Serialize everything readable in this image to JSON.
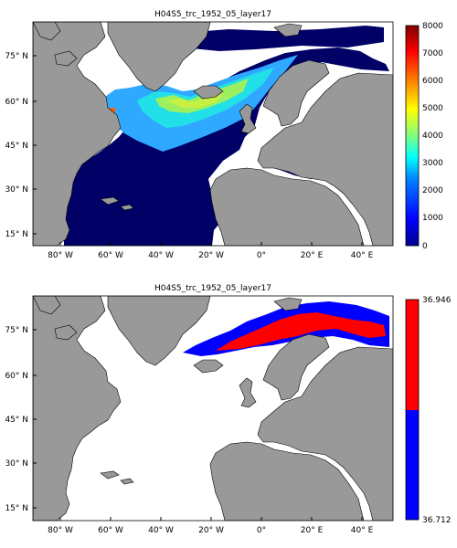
{
  "figure": {
    "panels": [
      {
        "title": "H04S5_trc_1952_05_layer17",
        "y_ticks": [
          "75° N",
          "60° N",
          "45° N",
          "30° N",
          "15° N"
        ],
        "x_ticks": [
          "80° W",
          "60° W",
          "40° W",
          "20° W",
          "0°",
          "20° E",
          "40° E"
        ],
        "colorbar_ticks": [
          "8000",
          "7000",
          "6000",
          "5000",
          "4000",
          "3000",
          "2000",
          "1000",
          "0"
        ],
        "colormap": [
          "#00008f",
          "#0000ff",
          "#0080ff",
          "#00ffff",
          "#80ff80",
          "#ffff00",
          "#ff8000",
          "#ff0000",
          "#800000"
        ]
      },
      {
        "title": "H04S5_trc_1952_05_layer17",
        "y_ticks": [
          "75° N",
          "60° N",
          "45° N",
          "30° N",
          "15° N"
        ],
        "x_ticks": [
          "80° W",
          "60° W",
          "40° W",
          "20° W",
          "0°",
          "20° E",
          "40° E"
        ],
        "colorbar_ticks": [
          "36.946",
          "36.712"
        ],
        "colormap": [
          "#ff0000",
          "#0000ff"
        ]
      }
    ]
  },
  "colors": {
    "land": "#999999",
    "ocean_masked": "#ffffff",
    "deep_blue": "#000066"
  }
}
